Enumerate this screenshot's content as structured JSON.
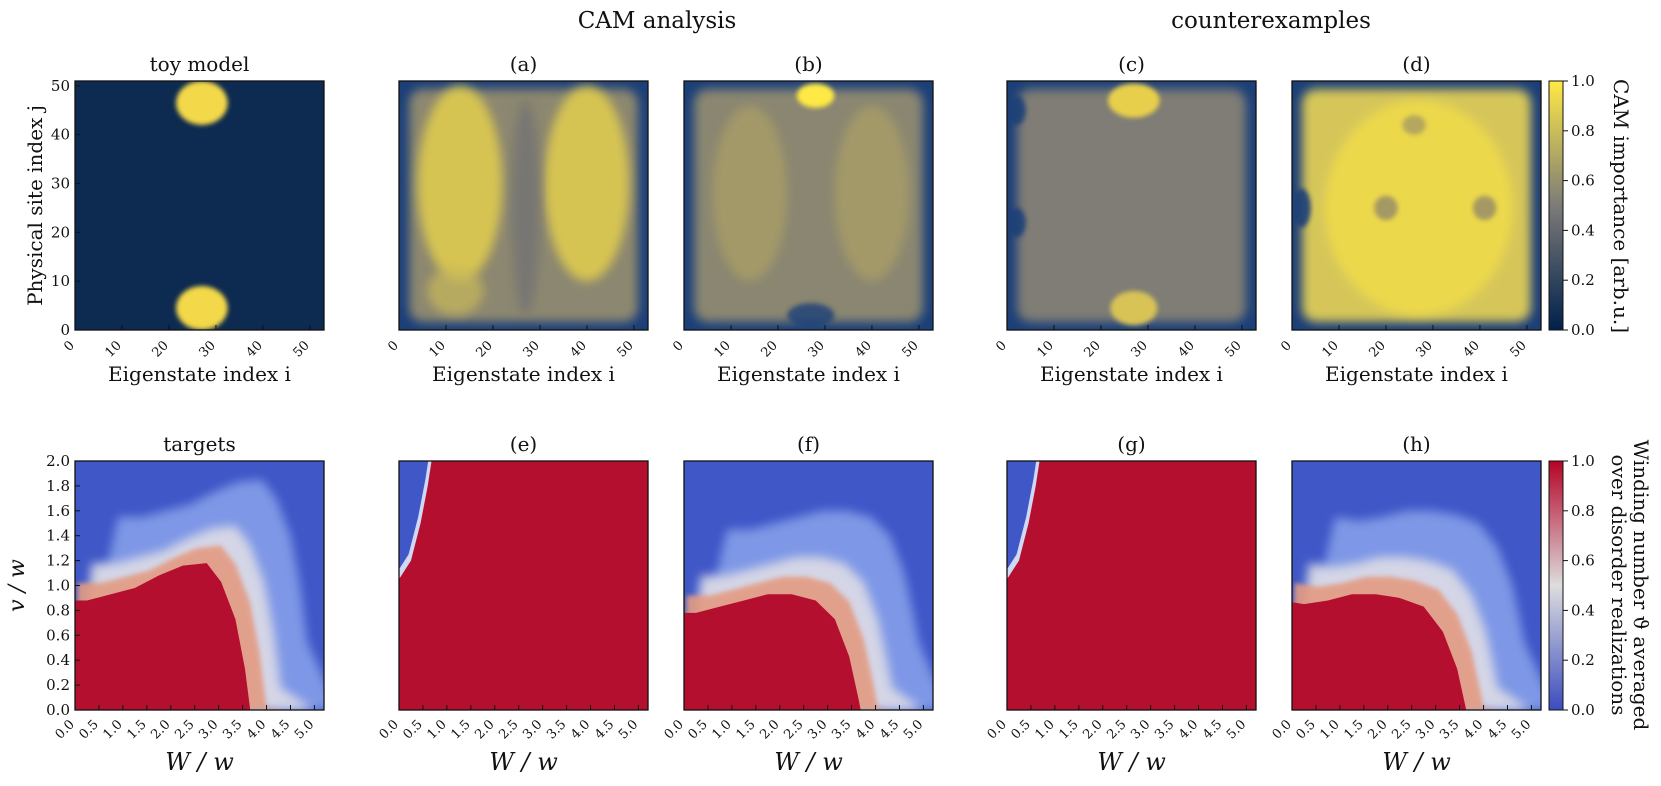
{
  "figure": {
    "super_titles": {
      "left": "CAM analysis",
      "right": "counterexamples"
    }
  },
  "chart_data": [
    {
      "id": "toy",
      "type": "heatmap",
      "title": "toy model",
      "xlabel": "Eigenstate index i",
      "ylabel": "Physical site index j",
      "xlim": [
        0,
        53
      ],
      "ylim": [
        0,
        51
      ],
      "xticks": [
        "0",
        "10",
        "20",
        "30",
        "40",
        "50"
      ],
      "yticks": [
        "0",
        "10",
        "20",
        "30",
        "40",
        "50"
      ],
      "pattern": "two yellow blobs at i≈22-32, j≈0-8 and j≈42-51; remainder 0.0",
      "colormap": "cividis",
      "rows": 51,
      "cols": 53
    },
    {
      "id": "a",
      "type": "heatmap",
      "title": "(a)",
      "xlabel": "Eigenstate index i",
      "xticks": [
        "0",
        "10",
        "20",
        "30",
        "40",
        "50"
      ],
      "xlim": [
        0,
        53
      ],
      "ylim": [
        0,
        51
      ],
      "pattern": "importance ~0.7-0.95 in columns i≈5-22 and i≈32-48, lower (~0.5) near i≈27, edges ~0.2",
      "colormap": "cividis"
    },
    {
      "id": "b",
      "type": "heatmap",
      "title": "(b)",
      "xlabel": "Eigenstate index i",
      "xticks": [
        "0",
        "10",
        "20",
        "30",
        "40",
        "50"
      ],
      "xlim": [
        0,
        53
      ],
      "ylim": [
        0,
        51
      ],
      "pattern": "uniform importance ~0.6-0.75, bright spot at top center (i≈28, j≈48), blue edges",
      "colormap": "cividis"
    },
    {
      "id": "c",
      "type": "heatmap",
      "title": "(c)",
      "xlabel": "Eigenstate index i",
      "xticks": [
        "0",
        "10",
        "20",
        "30",
        "40",
        "50"
      ],
      "xlim": [
        0,
        53
      ],
      "ylim": [
        0,
        51
      ],
      "pattern": "gray ~0.45-0.55 everywhere, yellow blobs at top and bottom center (i≈22-32)",
      "colormap": "cividis"
    },
    {
      "id": "d",
      "type": "heatmap",
      "title": "(d)",
      "xlabel": "Eigenstate index i",
      "xticks": [
        "0",
        "10",
        "20",
        "30",
        "40",
        "50"
      ],
      "xlim": [
        0,
        53
      ],
      "ylim": [
        0,
        51
      ],
      "pattern": "high importance ~0.9-1.0 nearly everywhere, darker spots ~0.6",
      "colormap": "cividis"
    },
    {
      "id": "targets",
      "type": "heatmap",
      "title": "targets",
      "xlabel": "W / w",
      "ylabel": "v / w",
      "xlim": [
        0,
        5.2
      ],
      "ylim": [
        0,
        2.0
      ],
      "xticks": [
        "0.0",
        "0.5",
        "1.0",
        "1.5",
        "2.0",
        "2.5",
        "3.0",
        "3.5",
        "4.0",
        "4.5",
        "5.0"
      ],
      "yticks": [
        "0.0",
        "0.2",
        "0.4",
        "0.6",
        "0.8",
        "1.0",
        "1.2",
        "1.4",
        "1.6",
        "1.8",
        "2.0"
      ],
      "boundary": [
        [
          0.0,
          1.0
        ],
        [
          0.5,
          1.0
        ],
        [
          1.0,
          1.05
        ],
        [
          1.5,
          1.1
        ],
        [
          2.0,
          1.2
        ],
        [
          2.5,
          1.28
        ],
        [
          3.0,
          1.3
        ],
        [
          3.3,
          1.15
        ],
        [
          3.6,
          0.85
        ],
        [
          3.8,
          0.45
        ],
        [
          3.95,
          0.0
        ]
      ],
      "colormap": "coolwarm"
    },
    {
      "id": "e",
      "type": "heatmap",
      "title": "(e)",
      "xlabel": "W / w",
      "xlim": [
        0,
        5.2
      ],
      "ylim": [
        0,
        2.0
      ],
      "xticks": [
        "0.0",
        "0.5",
        "1.0",
        "1.5",
        "2.0",
        "2.5",
        "3.0",
        "3.5",
        "4.0",
        "4.5",
        "5.0"
      ],
      "boundary": [
        [
          0.0,
          1.05
        ],
        [
          0.25,
          1.2
        ],
        [
          0.45,
          1.5
        ],
        [
          0.6,
          1.8
        ],
        [
          0.68,
          2.0
        ]
      ],
      "colormap": "coolwarm"
    },
    {
      "id": "f",
      "type": "heatmap",
      "title": "(f)",
      "xlabel": "W / w",
      "xlim": [
        0,
        5.2
      ],
      "ylim": [
        0,
        2.0
      ],
      "xticks": [
        "0.0",
        "0.5",
        "1.0",
        "1.5",
        "2.0",
        "2.5",
        "3.0",
        "3.5",
        "4.0",
        "4.5",
        "5.0"
      ],
      "boundary": [
        [
          0.0,
          0.9
        ],
        [
          0.5,
          0.9
        ],
        [
          1.0,
          0.95
        ],
        [
          1.5,
          1.0
        ],
        [
          2.0,
          1.05
        ],
        [
          2.5,
          1.05
        ],
        [
          3.0,
          1.0
        ],
        [
          3.4,
          0.85
        ],
        [
          3.7,
          0.55
        ],
        [
          3.9,
          0.2
        ],
        [
          4.0,
          0.0
        ]
      ],
      "colormap": "coolwarm"
    },
    {
      "id": "g",
      "type": "heatmap",
      "title": "(g)",
      "xlabel": "W / w",
      "xlim": [
        0,
        5.2
      ],
      "ylim": [
        0,
        2.0
      ],
      "xticks": [
        "0.0",
        "0.5",
        "1.0",
        "1.5",
        "2.0",
        "2.5",
        "3.0",
        "3.5",
        "4.0",
        "4.5",
        "5.0"
      ],
      "boundary": [
        [
          0.0,
          1.05
        ],
        [
          0.25,
          1.2
        ],
        [
          0.45,
          1.5
        ],
        [
          0.6,
          1.8
        ],
        [
          0.68,
          2.0
        ]
      ],
      "colormap": "coolwarm"
    },
    {
      "id": "h",
      "type": "heatmap",
      "title": "(h)",
      "xlabel": "W / w",
      "xlim": [
        0,
        5.2
      ],
      "ylim": [
        0,
        2.0
      ],
      "xticks": [
        "0.0",
        "0.5",
        "1.0",
        "1.5",
        "2.0",
        "2.5",
        "3.0",
        "3.5",
        "4.0",
        "4.5",
        "5.0"
      ],
      "boundary": [
        [
          0.0,
          1.0
        ],
        [
          0.5,
          0.97
        ],
        [
          1.0,
          1.0
        ],
        [
          1.5,
          1.05
        ],
        [
          2.0,
          1.05
        ],
        [
          2.5,
          1.02
        ],
        [
          3.0,
          0.95
        ],
        [
          3.4,
          0.75
        ],
        [
          3.7,
          0.45
        ],
        [
          3.9,
          0.1
        ],
        [
          3.95,
          0.0
        ]
      ],
      "colormap": "coolwarm"
    }
  ],
  "colorbars": {
    "top": {
      "label": "CAM importance [arb.u.]",
      "ticks": [
        "0.0",
        "0.2",
        "0.4",
        "0.6",
        "0.8",
        "1.0"
      ],
      "range": [
        0,
        1
      ],
      "colors": [
        "#00204c",
        "#7c7b78",
        "#ffe945"
      ]
    },
    "bottom": {
      "label_line1": "Winding number ϑ averaged",
      "label_line2": "over disorder realizations",
      "ticks": [
        "0.0",
        "0.2",
        "0.4",
        "0.6",
        "0.8",
        "1.0"
      ],
      "range": [
        0,
        1
      ],
      "colors": [
        "#3b4cc0",
        "#dddddd",
        "#b40426"
      ]
    }
  }
}
